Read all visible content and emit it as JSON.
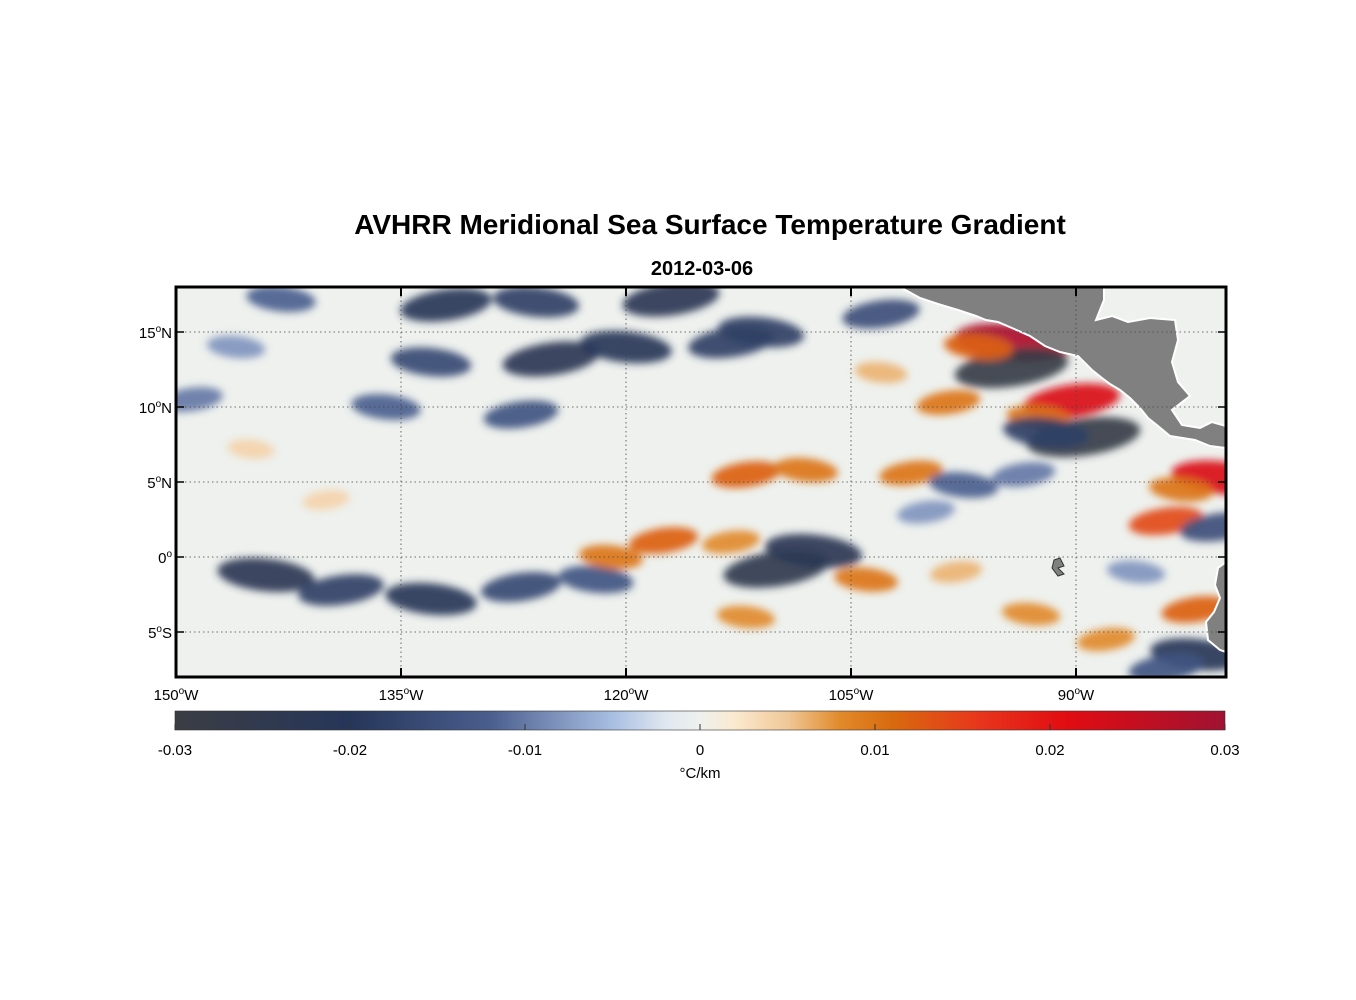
{
  "chart_data": {
    "type": "heatmap",
    "title": "AVHRR Meridional Sea Surface Temperature Gradient",
    "subtitle": "2012-03-06",
    "map": {
      "lon_range": [
        -150,
        -80
      ],
      "lat_range": [
        -8,
        18
      ],
      "lat_ticks": [
        {
          "value": 15,
          "deg": "15",
          "hemi": "N"
        },
        {
          "value": 10,
          "deg": "10",
          "hemi": "N"
        },
        {
          "value": 5,
          "deg": "5",
          "hemi": "N"
        },
        {
          "value": 0,
          "deg": "0",
          "hemi": ""
        },
        {
          "value": -5,
          "deg": "5",
          "hemi": "S"
        }
      ],
      "lon_ticks": [
        {
          "value": -150,
          "deg": "150",
          "hemi": "W"
        },
        {
          "value": -135,
          "deg": "135",
          "hemi": "W"
        },
        {
          "value": -120,
          "deg": "120",
          "hemi": "W"
        },
        {
          "value": -105,
          "deg": "105",
          "hemi": "W"
        },
        {
          "value": -90,
          "deg": "90",
          "hemi": "W"
        }
      ],
      "gridlines": true,
      "land_color": "#808080",
      "features": [
        {
          "lon": -143,
          "lat": 17.2,
          "value": -0.012
        },
        {
          "lon": -132,
          "lat": 16.8,
          "value": -0.02
        },
        {
          "lon": -126,
          "lat": 17.0,
          "value": -0.018
        },
        {
          "lon": -117,
          "lat": 17.2,
          "value": -0.022
        },
        {
          "lon": -111,
          "lat": 15.0,
          "value": -0.018
        },
        {
          "lon": -103,
          "lat": 16.2,
          "value": -0.015
        },
        {
          "lon": -133,
          "lat": 13.0,
          "value": -0.016
        },
        {
          "lon": -125,
          "lat": 13.2,
          "value": -0.022
        },
        {
          "lon": -120,
          "lat": 14.0,
          "value": -0.02
        },
        {
          "lon": -113,
          "lat": 14.3,
          "value": -0.018
        },
        {
          "lon": -136,
          "lat": 10.0,
          "value": -0.012
        },
        {
          "lon": -127,
          "lat": 9.5,
          "value": -0.014
        },
        {
          "lon": -146,
          "lat": 14.0,
          "value": -0.008
        },
        {
          "lon": -149,
          "lat": 10.5,
          "value": -0.01
        },
        {
          "lon": -94.3,
          "lat": 14.3,
          "value": 0.028
        },
        {
          "lon": -94.3,
          "lat": 12.6,
          "value": -0.028
        },
        {
          "lon": -96.5,
          "lat": 14.0,
          "value": 0.012
        },
        {
          "lon": -90.3,
          "lat": 10.4,
          "value": 0.022
        },
        {
          "lon": -92.5,
          "lat": 9.3,
          "value": 0.01
        },
        {
          "lon": -89.5,
          "lat": 8.0,
          "value": -0.028
        },
        {
          "lon": -92.0,
          "lat": 8.3,
          "value": -0.018
        },
        {
          "lon": -98.5,
          "lat": 10.3,
          "value": 0.01
        },
        {
          "lon": -103.0,
          "lat": 12.3,
          "value": 0.006
        },
        {
          "lon": -101.0,
          "lat": 5.6,
          "value": 0.01
        },
        {
          "lon": -97.5,
          "lat": 4.8,
          "value": -0.012
        },
        {
          "lon": -93.5,
          "lat": 5.5,
          "value": -0.01
        },
        {
          "lon": -80.4,
          "lat": 5.3,
          "value": 0.022
        },
        {
          "lon": -84.0,
          "lat": 2.4,
          "value": 0.014
        },
        {
          "lon": -83.0,
          "lat": 4.5,
          "value": 0.01
        },
        {
          "lon": -82.0,
          "lat": -3.5,
          "value": 0.012
        },
        {
          "lon": -82.0,
          "lat": -6.5,
          "value": -0.02
        },
        {
          "lon": -80.5,
          "lat": 2.0,
          "value": -0.015
        },
        {
          "lon": -144,
          "lat": -1.2,
          "value": -0.022
        },
        {
          "lon": -139,
          "lat": -2.2,
          "value": -0.018
        },
        {
          "lon": -133,
          "lat": -2.8,
          "value": -0.02
        },
        {
          "lon": -127,
          "lat": -2.0,
          "value": -0.016
        },
        {
          "lon": -122,
          "lat": -1.5,
          "value": -0.014
        },
        {
          "lon": -110,
          "lat": -0.8,
          "value": -0.025
        },
        {
          "lon": -107.5,
          "lat": 0.4,
          "value": -0.022
        },
        {
          "lon": -112,
          "lat": 5.5,
          "value": 0.012
        },
        {
          "lon": -108,
          "lat": 5.8,
          "value": 0.01
        },
        {
          "lon": -117.5,
          "lat": 1.1,
          "value": 0.012
        },
        {
          "lon": -121,
          "lat": 0.0,
          "value": 0.01
        },
        {
          "lon": -113,
          "lat": 1.0,
          "value": 0.008
        },
        {
          "lon": -104,
          "lat": -1.5,
          "value": 0.01
        },
        {
          "lon": -98,
          "lat": -1.0,
          "value": 0.006
        },
        {
          "lon": -93,
          "lat": -3.8,
          "value": 0.008
        },
        {
          "lon": -88,
          "lat": -5.5,
          "value": 0.008
        },
        {
          "lon": -112,
          "lat": -4.0,
          "value": 0.008
        },
        {
          "lon": -140,
          "lat": 3.8,
          "value": 0.004
        },
        {
          "lon": -145,
          "lat": 7.2,
          "value": 0.004
        },
        {
          "lon": -100,
          "lat": 3.0,
          "value": -0.008
        },
        {
          "lon": -86,
          "lat": -1.0,
          "value": -0.008
        },
        {
          "lon": -84,
          "lat": -7.4,
          "value": -0.014
        }
      ]
    },
    "colorbar": {
      "min": -0.03,
      "max": 0.03,
      "ticks": [
        "-0.03",
        "-0.02",
        "-0.01",
        "0",
        "0.01",
        "0.02",
        "0.03"
      ],
      "label": "°C/km",
      "stops": [
        {
          "v": -0.03,
          "c": "#3b3d44"
        },
        {
          "v": -0.02,
          "c": "#263659"
        },
        {
          "v": -0.012,
          "c": "#4a5e8e"
        },
        {
          "v": -0.005,
          "c": "#a8bfe2"
        },
        {
          "v": -0.002,
          "c": "#dfe7f0"
        },
        {
          "v": 0.0,
          "c": "#eef1ee"
        },
        {
          "v": 0.002,
          "c": "#fbe9cf"
        },
        {
          "v": 0.005,
          "c": "#f0c898"
        },
        {
          "v": 0.008,
          "c": "#e18a2a"
        },
        {
          "v": 0.011,
          "c": "#d86a0e"
        },
        {
          "v": 0.016,
          "c": "#e8351c"
        },
        {
          "v": 0.021,
          "c": "#e10c12"
        },
        {
          "v": 0.03,
          "c": "#a01232"
        }
      ]
    }
  }
}
